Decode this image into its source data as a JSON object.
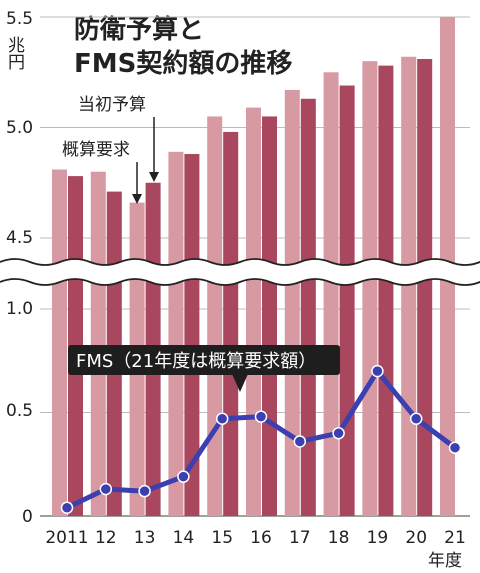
{
  "chart_data": {
    "type": "bar",
    "title_line1": "防衛予算と",
    "title_line2": "FMS契約額の推移",
    "unit": "兆円",
    "xlabel": "年度",
    "categories": [
      "2011",
      "12",
      "13",
      "14",
      "15",
      "16",
      "17",
      "18",
      "19",
      "20",
      "21"
    ],
    "upper_axis": {
      "ylim": [
        4.5,
        5.5
      ],
      "ticks": [
        "5.5",
        "5.0",
        "4.5"
      ]
    },
    "lower_axis": {
      "ylim": [
        0,
        1.1
      ],
      "ticks": [
        "1.0",
        "0.5",
        "0"
      ]
    },
    "series": [
      {
        "name": "概算要求",
        "color": "#d79aa3",
        "values": [
          4.81,
          4.8,
          4.66,
          4.89,
          5.05,
          5.09,
          5.17,
          5.25,
          5.3,
          5.32,
          5.5
        ]
      },
      {
        "name": "当初予算",
        "color": "#a8475d",
        "values": [
          4.78,
          4.71,
          4.75,
          4.88,
          4.98,
          5.05,
          5.13,
          5.19,
          5.28,
          5.31,
          null
        ]
      },
      {
        "name": "FMS",
        "color": "#3c3fb0",
        "type": "line",
        "values": [
          0.04,
          0.13,
          0.12,
          0.19,
          0.47,
          0.48,
          0.36,
          0.4,
          0.7,
          0.47,
          0.33
        ]
      }
    ],
    "annotations": {
      "initial_budget": "当初予算",
      "request": "概算要求",
      "fms": "FMS（21年度は概算要求額）"
    }
  }
}
